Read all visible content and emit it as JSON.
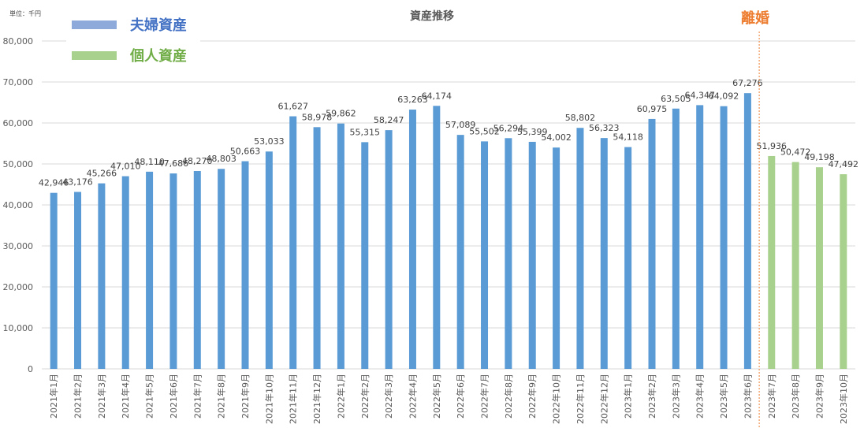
{
  "unit_label": "単位：千円",
  "colors": {
    "couple": "#5B9BD5",
    "individual": "#A9D18E",
    "couple_legend_text": "#4472C4",
    "individual_legend_text": "#70AD47",
    "divorce": "#ED7D31",
    "grid": "#D9D9D9",
    "axis_text": "#595959",
    "label_text": "#404040"
  },
  "legend": {
    "couple": "夫婦資産",
    "individual": "個人資産"
  },
  "divorce_label": "離婚",
  "chart_data": {
    "type": "bar",
    "title": "資産推移",
    "xlabel": "",
    "ylabel": "",
    "unit": "千円",
    "ylim": [
      0,
      80000
    ],
    "yticks": [
      0,
      10000,
      20000,
      30000,
      40000,
      50000,
      60000,
      70000,
      80000
    ],
    "grid": true,
    "legend_position": "top-left",
    "categories": [
      "2021年1月",
      "2021年2月",
      "2021年3月",
      "2021年4月",
      "2021年5月",
      "2021年6月",
      "2021年7月",
      "2021年8月",
      "2021年9月",
      "2021年10月",
      "2021年11月",
      "2021年12月",
      "2022年1月",
      "2022年2月",
      "2022年3月",
      "2022年4月",
      "2022年5月",
      "2022年6月",
      "2022年7月",
      "2022年8月",
      "2022年9月",
      "2022年10月",
      "2022年11月",
      "2022年12月",
      "2023年1月",
      "2023年2月",
      "2023年3月",
      "2023年4月",
      "2023年5月",
      "2023年6月",
      "2023年7月",
      "2023年8月",
      "2023年9月",
      "2023年10月"
    ],
    "series": [
      {
        "name": "夫婦資産",
        "values": [
          42946,
          43176,
          45266,
          47010,
          48110,
          47686,
          48270,
          48803,
          50663,
          53033,
          61627,
          58978,
          59862,
          55315,
          58247,
          63263,
          64174,
          57089,
          55502,
          56294,
          55399,
          54002,
          58802,
          56323,
          54118,
          60975,
          63505,
          64347,
          64092,
          67276,
          null,
          null,
          null,
          null
        ]
      },
      {
        "name": "個人資産",
        "values": [
          null,
          null,
          null,
          null,
          null,
          null,
          null,
          null,
          null,
          null,
          null,
          null,
          null,
          null,
          null,
          null,
          null,
          null,
          null,
          null,
          null,
          null,
          null,
          null,
          null,
          null,
          null,
          null,
          null,
          null,
          51936,
          50472,
          49198,
          47492
        ]
      }
    ],
    "annotations": [
      {
        "type": "vertical-dashed-line",
        "between": [
          "2023年6月",
          "2023年7月"
        ],
        "label": "離婚"
      }
    ]
  }
}
